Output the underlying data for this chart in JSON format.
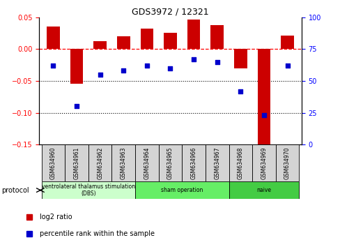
{
  "title": "GDS3972 / 12321",
  "samples": [
    "GSM634960",
    "GSM634961",
    "GSM634962",
    "GSM634963",
    "GSM634964",
    "GSM634965",
    "GSM634966",
    "GSM634967",
    "GSM634968",
    "GSM634969",
    "GSM634970"
  ],
  "log2_ratio": [
    0.035,
    -0.055,
    0.013,
    0.02,
    0.032,
    0.026,
    0.047,
    0.038,
    -0.03,
    -0.155,
    0.021
  ],
  "percentile_rank": [
    62,
    30,
    55,
    58,
    62,
    60,
    67,
    65,
    42,
    23,
    62
  ],
  "groups": [
    {
      "label": "ventrolateral thalamus stimulation\n(DBS)",
      "start": 0,
      "end": 3,
      "color": "#ccffcc"
    },
    {
      "label": "sham operation",
      "start": 4,
      "end": 7,
      "color": "#66ee66"
    },
    {
      "label": "naive",
      "start": 8,
      "end": 10,
      "color": "#44cc44"
    }
  ],
  "bar_color": "#cc0000",
  "dot_color": "#0000cc",
  "left_ylim": [
    -0.15,
    0.05
  ],
  "right_ylim": [
    0,
    100
  ],
  "left_yticks": [
    -0.15,
    -0.1,
    -0.05,
    0,
    0.05
  ],
  "right_yticks": [
    0,
    25,
    50,
    75,
    100
  ],
  "dotted_lines": [
    -0.05,
    -0.1
  ],
  "background_color": "#ffffff",
  "figsize": [
    4.89,
    3.54
  ],
  "dpi": 100
}
